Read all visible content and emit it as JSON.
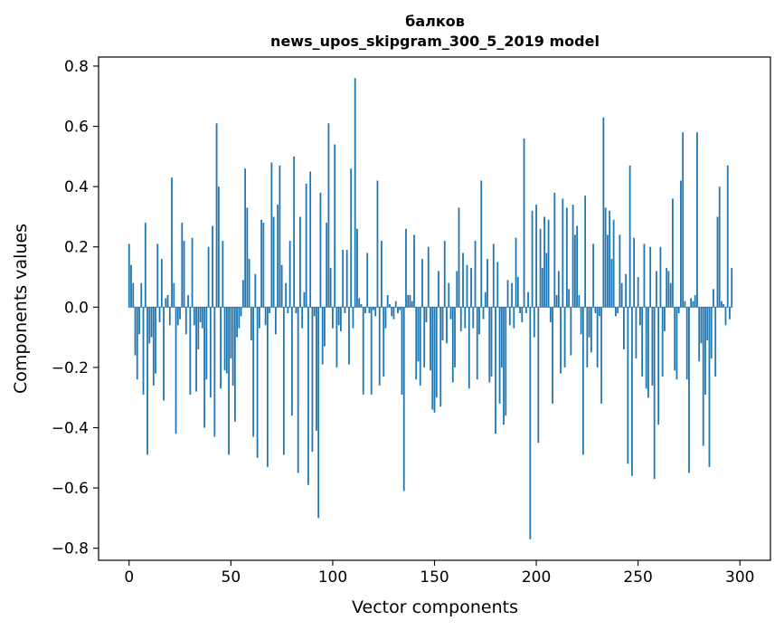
{
  "chart_data": {
    "type": "bar",
    "title": "балков",
    "subtitle": "news_upos_skipgram_300_5_2019 model",
    "xlabel": "Vector components",
    "ylabel": "Components values",
    "xlim": [
      -15,
      315
    ],
    "ylim": [
      -0.84,
      0.83
    ],
    "xticks": [
      0,
      50,
      100,
      150,
      200,
      250,
      300
    ],
    "xtick_labels": [
      "0",
      "50",
      "100",
      "150",
      "200",
      "250",
      "300"
    ],
    "yticks": [
      -0.8,
      -0.6,
      -0.4,
      -0.2,
      0.0,
      0.2,
      0.4,
      0.6,
      0.8
    ],
    "ytick_labels": [
      "−0.8",
      "−0.6",
      "−0.4",
      "−0.2",
      "0.0",
      "0.2",
      "0.4",
      "0.6",
      "0.8"
    ],
    "grid": false,
    "bar_color": "#1f77b4",
    "values": [
      0.21,
      0.14,
      0.08,
      -0.16,
      -0.24,
      -0.09,
      0.08,
      -0.29,
      0.28,
      -0.49,
      -0.12,
      -0.1,
      -0.26,
      -0.22,
      0.21,
      -0.05,
      0.16,
      -0.31,
      0.03,
      0.04,
      -0.06,
      0.43,
      0.08,
      -0.42,
      -0.06,
      -0.04,
      0.28,
      0.22,
      -0.09,
      0.04,
      -0.29,
      0.23,
      -0.06,
      -0.28,
      -0.14,
      -0.05,
      -0.07,
      -0.4,
      -0.24,
      0.2,
      -0.3,
      0.27,
      -0.43,
      0.61,
      0.4,
      -0.27,
      0.22,
      -0.21,
      -0.22,
      -0.49,
      -0.17,
      -0.26,
      -0.38,
      -0.1,
      -0.07,
      -0.03,
      0.09,
      0.46,
      0.33,
      0.16,
      -0.11,
      -0.43,
      0.11,
      -0.5,
      -0.07,
      0.29,
      0.28,
      -0.06,
      -0.53,
      -0.02,
      0.48,
      0.3,
      -0.09,
      0.34,
      0.47,
      0.14,
      -0.49,
      0.08,
      -0.02,
      0.22,
      -0.36,
      0.5,
      -0.02,
      -0.55,
      0.3,
      -0.07,
      0.05,
      0.41,
      -0.59,
      0.45,
      -0.48,
      -0.03,
      -0.41,
      -0.7,
      0.38,
      -0.19,
      -0.13,
      0.28,
      0.61,
      0.13,
      -0.07,
      0.54,
      -0.2,
      -0.06,
      -0.08,
      0.19,
      -0.02,
      0.19,
      -0.19,
      0.46,
      -0.07,
      0.76,
      0.26,
      0.03,
      0.01,
      -0.29,
      -0.02,
      0.18,
      -0.02,
      -0.29,
      -0.01,
      -0.03,
      0.42,
      -0.26,
      0.22,
      -0.23,
      -0.07,
      0.04,
      0.01,
      -0.03,
      -0.04,
      0.02,
      -0.02,
      -0.01,
      -0.29,
      -0.61,
      0.26,
      0.04,
      0.04,
      0.02,
      0.24,
      -0.24,
      -0.18,
      -0.26,
      0.16,
      -0.2,
      -0.05,
      0.2,
      -0.21,
      -0.34,
      -0.35,
      -0.3,
      0.12,
      -0.33,
      -0.11,
      0.22,
      -0.12,
      0.08,
      -0.04,
      -0.25,
      -0.2,
      0.12,
      0.33,
      -0.08,
      0.18,
      -0.07,
      0.14,
      -0.27,
      0.13,
      -0.07,
      0.22,
      -0.24,
      -0.09,
      0.42,
      -0.04,
      0.05,
      0.16,
      -0.25,
      -0.23,
      0.21,
      -0.42,
      0.15,
      -0.32,
      -0.2,
      -0.39,
      -0.36,
      0.09,
      -0.06,
      0.08,
      -0.07,
      0.23,
      0.1,
      -0.02,
      -0.05,
      0.56,
      -0.02,
      0.05,
      -0.77,
      0.32,
      -0.1,
      0.34,
      -0.45,
      0.26,
      0.13,
      0.3,
      0.18,
      0.29,
      -0.05,
      -0.32,
      0.38,
      0.04,
      0.12,
      -0.22,
      0.36,
      -0.2,
      0.33,
      0.06,
      -0.16,
      0.34,
      0.24,
      0.27,
      0.04,
      -0.09,
      -0.49,
      0.37,
      -0.2,
      -0.1,
      -0.15,
      0.21,
      -0.02,
      -0.2,
      -0.03,
      -0.32,
      0.63,
      0.33,
      0.24,
      0.32,
      0.16,
      0.29,
      -0.03,
      -0.02,
      0.24,
      0.08,
      -0.14,
      0.11,
      -0.52,
      0.47,
      -0.56,
      0.23,
      -0.17,
      0.1,
      -0.06,
      -0.23,
      0.21,
      -0.27,
      -0.3,
      0.2,
      -0.26,
      -0.57,
      0.12,
      -0.39,
      0.2,
      -0.23,
      -0.08,
      0.13,
      0.12,
      0.08,
      0.36,
      -0.21,
      -0.24,
      -0.02,
      0.42,
      0.58,
      0.02,
      -0.24,
      -0.55,
      0.03,
      0.02,
      0.04,
      0.58,
      -0.18,
      -0.12,
      -0.46,
      -0.29,
      -0.11,
      -0.53,
      -0.17,
      0.06,
      -0.23,
      0.3,
      0.4,
      0.02,
      0.01,
      -0.06,
      0.47,
      -0.04,
      0.13
    ]
  }
}
